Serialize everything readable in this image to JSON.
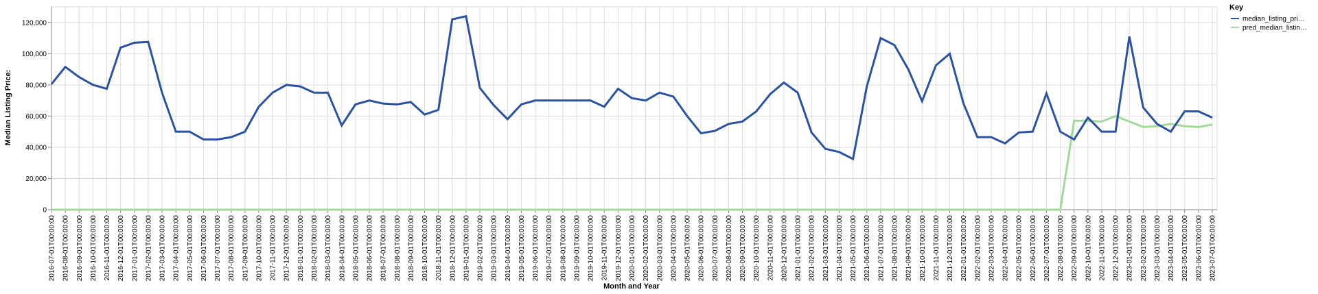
{
  "chart_data": {
    "type": "line",
    "xlabel": "Month and Year",
    "ylabel": "Median Listing Price:",
    "ylim": [
      0,
      130000
    ],
    "yticks": [
      0,
      20000,
      40000,
      60000,
      80000,
      100000,
      120000
    ],
    "ytick_labels": [
      "0",
      "20,000",
      "40,000",
      "60,000",
      "80,000",
      "100,000",
      "120,000"
    ],
    "grid": true,
    "legend": {
      "title": "Key",
      "placement": "top-right"
    },
    "x": [
      "2016-07-01T00:00:00",
      "2016-08-01T00:00:00",
      "2016-09-01T00:00:00",
      "2016-10-01T00:00:00",
      "2016-11-01T00:00:00",
      "2016-12-01T00:00:00",
      "2017-01-01T00:00:00",
      "2017-02-01T00:00:00",
      "2017-03-01T00:00:00",
      "2017-04-01T00:00:00",
      "2017-05-01T00:00:00",
      "2017-06-01T00:00:00",
      "2017-07-01T00:00:00",
      "2017-08-01T00:00:00",
      "2017-09-01T00:00:00",
      "2017-10-01T00:00:00",
      "2017-11-01T00:00:00",
      "2017-12-01T00:00:00",
      "2018-01-01T00:00:00",
      "2018-02-01T00:00:00",
      "2018-03-01T00:00:00",
      "2018-04-01T00:00:00",
      "2018-05-01T00:00:00",
      "2018-06-01T00:00:00",
      "2018-07-01T00:00:00",
      "2018-08-01T00:00:00",
      "2018-09-01T00:00:00",
      "2018-10-01T00:00:00",
      "2018-11-01T00:00:00",
      "2018-12-01T00:00:00",
      "2019-01-01T00:00:00",
      "2019-02-01T00:00:00",
      "2019-03-01T00:00:00",
      "2019-04-01T00:00:00",
      "2019-05-01T00:00:00",
      "2019-06-01T00:00:00",
      "2019-07-01T00:00:00",
      "2019-08-01T00:00:00",
      "2019-09-01T00:00:00",
      "2019-10-01T00:00:00",
      "2019-11-01T00:00:00",
      "2019-12-01T00:00:00",
      "2020-01-01T00:00:00",
      "2020-02-01T00:00:00",
      "2020-03-01T00:00:00",
      "2020-04-01T00:00:00",
      "2020-05-01T00:00:00",
      "2020-06-01T00:00:00",
      "2020-07-01T00:00:00",
      "2020-08-01T00:00:00",
      "2020-09-01T00:00:00",
      "2020-10-01T00:00:00",
      "2020-11-01T00:00:00",
      "2020-12-01T00:00:00",
      "2021-01-01T00:00:00",
      "2021-02-01T00:00:00",
      "2021-03-01T00:00:00",
      "2021-04-01T00:00:00",
      "2021-05-01T00:00:00",
      "2021-06-01T00:00:00",
      "2021-07-01T00:00:00",
      "2021-08-01T00:00:00",
      "2021-09-01T00:00:00",
      "2021-10-01T00:00:00",
      "2021-11-01T00:00:00",
      "2021-12-01T00:00:00",
      "2022-01-01T00:00:00",
      "2022-02-01T00:00:00",
      "2022-03-01T00:00:00",
      "2022-04-01T00:00:00",
      "2022-05-01T00:00:00",
      "2022-06-01T00:00:00",
      "2022-07-01T00:00:00",
      "2022-08-01T00:00:00",
      "2022-09-01T00:00:00",
      "2022-10-01T00:00:00",
      "2022-11-01T00:00:00",
      "2022-12-01T00:00:00",
      "2023-01-01T00:00:00",
      "2023-02-01T00:00:00",
      "2023-03-01T00:00:00",
      "2023-04-01T00:00:00",
      "2023-05-01T00:00:00",
      "2023-06-01T00:00:00",
      "2023-07-01T00:00:00"
    ],
    "series": [
      {
        "name": "median_listing_pri…",
        "color": "#2a52a0",
        "values": [
          80500,
          91500,
          85000,
          80000,
          77500,
          103900,
          107000,
          107500,
          75000,
          50000,
          50000,
          45000,
          45000,
          46500,
          50000,
          66000,
          75000,
          80000,
          79000,
          75000,
          75000,
          54000,
          67500,
          70000,
          68000,
          67500,
          69000,
          61000,
          64000,
          122000,
          124000,
          78000,
          67000,
          58000,
          67500,
          70000,
          70000,
          70000,
          70000,
          70000,
          66000,
          77500,
          71500,
          70000,
          75000,
          72500,
          60000,
          49000,
          50500,
          55000,
          56500,
          63000,
          74000,
          81500,
          75000,
          49500,
          39000,
          37000,
          32500,
          79000,
          110000,
          105500,
          90000,
          69500,
          92500,
          100000,
          68000,
          46500,
          46500,
          42500,
          49500,
          50000,
          74500,
          50000,
          45000,
          59000,
          50000,
          50000,
          111000,
          65500,
          55000,
          50000,
          63000,
          63000,
          59000
        ]
      },
      {
        "name": "pred_median_listin…",
        "color": "#a2d99b",
        "values": [
          0,
          0,
          0,
          0,
          0,
          0,
          0,
          0,
          0,
          0,
          0,
          0,
          0,
          0,
          0,
          0,
          0,
          0,
          0,
          0,
          0,
          0,
          0,
          0,
          0,
          0,
          0,
          0,
          0,
          0,
          0,
          0,
          0,
          0,
          0,
          0,
          0,
          0,
          0,
          0,
          0,
          0,
          0,
          0,
          0,
          0,
          0,
          0,
          0,
          0,
          0,
          0,
          0,
          0,
          0,
          0,
          0,
          0,
          0,
          0,
          0,
          0,
          0,
          0,
          0,
          0,
          0,
          0,
          0,
          0,
          0,
          0,
          0,
          0,
          57000,
          57000,
          56500,
          60000,
          56500,
          53000,
          53500,
          55000,
          53500,
          53000,
          54500
        ]
      }
    ]
  }
}
